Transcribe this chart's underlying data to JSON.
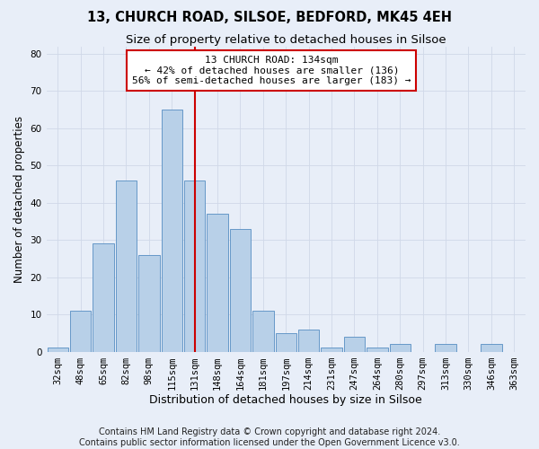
{
  "title": "13, CHURCH ROAD, SILSOE, BEDFORD, MK45 4EH",
  "subtitle": "Size of property relative to detached houses in Silsoe",
  "xlabel": "Distribution of detached houses by size in Silsoe",
  "ylabel": "Number of detached properties",
  "bin_labels": [
    "32sqm",
    "48sqm",
    "65sqm",
    "82sqm",
    "98sqm",
    "115sqm",
    "131sqm",
    "148sqm",
    "164sqm",
    "181sqm",
    "197sqm",
    "214sqm",
    "231sqm",
    "247sqm",
    "264sqm",
    "280sqm",
    "297sqm",
    "313sqm",
    "330sqm",
    "346sqm",
    "363sqm"
  ],
  "bar_heights": [
    1,
    11,
    29,
    46,
    26,
    65,
    46,
    37,
    33,
    11,
    5,
    6,
    1,
    4,
    1,
    2,
    0,
    2,
    0,
    2,
    0
  ],
  "bar_color": "#b8d0e8",
  "bar_edge_color": "#6698c8",
  "marker_bin_index": 6,
  "marker_color": "#cc0000",
  "annotation_line1": "13 CHURCH ROAD: 134sqm",
  "annotation_line2": "← 42% of detached houses are smaller (136)",
  "annotation_line3": "56% of semi-detached houses are larger (183) →",
  "annotation_box_color": "#ffffff",
  "annotation_box_edge_color": "#cc0000",
  "ylim": [
    0,
    82
  ],
  "yticks": [
    0,
    10,
    20,
    30,
    40,
    50,
    60,
    70,
    80
  ],
  "footer_line1": "Contains HM Land Registry data © Crown copyright and database right 2024.",
  "footer_line2": "Contains public sector information licensed under the Open Government Licence v3.0.",
  "background_color": "#e8eef8",
  "grid_color": "#d0d8e8",
  "title_fontsize": 10.5,
  "subtitle_fontsize": 9.5,
  "xlabel_fontsize": 9,
  "ylabel_fontsize": 8.5,
  "tick_fontsize": 7.5,
  "annotation_fontsize": 8,
  "footer_fontsize": 7
}
